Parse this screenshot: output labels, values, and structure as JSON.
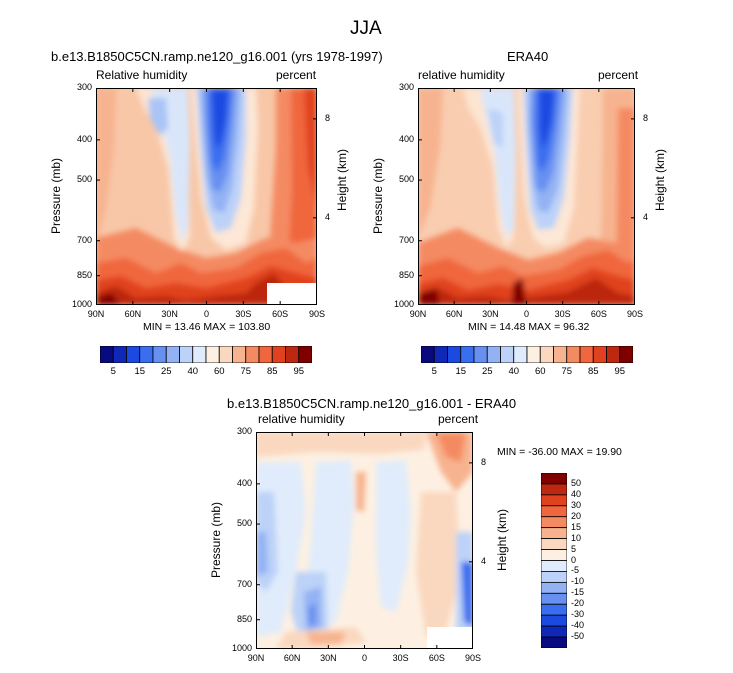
{
  "chart_data": [
    {
      "type": "heatmap",
      "title": "b.e13.B1850C5CN.ramp.ne120_g16.001 (yrs 1978-1997)",
      "left_label": "Relative humidity",
      "right_label": "percent",
      "ylabel": "Pressure (mb)",
      "ylabel_right": "Height (km)",
      "x_ticks": [
        "90N",
        "60N",
        "30N",
        "0",
        "30S",
        "60S",
        "90S"
      ],
      "y_ticks": [
        "300",
        "400",
        "500",
        "700",
        "850",
        "1000"
      ],
      "height_ticks": [
        "8",
        "4"
      ],
      "min": 13.46,
      "max": 103.8,
      "stats_text": "MIN = 13.46   MAX = 103.80"
    },
    {
      "type": "heatmap",
      "title": "ERA40",
      "left_label": "relative humidity",
      "right_label": "percent",
      "ylabel": "Pressure (mb)",
      "ylabel_right": "Height (km)",
      "x_ticks": [
        "90N",
        "60N",
        "30N",
        "0",
        "30S",
        "60S",
        "90S"
      ],
      "y_ticks": [
        "300",
        "400",
        "500",
        "700",
        "850",
        "1000"
      ],
      "height_ticks": [
        "8",
        "4"
      ],
      "min": 14.48,
      "max": 96.32,
      "stats_text": "MIN = 14.48   MAX = 96.32"
    },
    {
      "type": "heatmap",
      "title": "b.e13.B1850C5CN.ramp.ne120_g16.001 - ERA40",
      "left_label": "relative humidity",
      "right_label": "percent",
      "ylabel": "Pressure (mb)",
      "ylabel_right": "Height (km)",
      "x_ticks": [
        "90N",
        "60N",
        "30N",
        "0",
        "30S",
        "60S",
        "90S"
      ],
      "y_ticks": [
        "300",
        "400",
        "500",
        "700",
        "850",
        "1000"
      ],
      "height_ticks": [
        "8",
        "4"
      ],
      "min": -36.0,
      "max": 19.9,
      "stats_text": "MIN = -36.00   MAX =  19.90"
    }
  ],
  "figure": {
    "title": "JJA"
  },
  "colorbar_abs": {
    "labels": [
      "5",
      "15",
      "25",
      "40",
      "60",
      "75",
      "85",
      "95"
    ],
    "colors": [
      "#0a0a80",
      "#1028b8",
      "#1a4ae0",
      "#3a6ef0",
      "#6790f0",
      "#93b2f4",
      "#bcd2f8",
      "#e0ecfb",
      "#fdf0e2",
      "#fad8bf",
      "#f7b38f",
      "#f48a62",
      "#f0663e",
      "#e0421f",
      "#bc2810",
      "#800000"
    ]
  },
  "colorbar_diff": {
    "labels": [
      "50",
      "40",
      "30",
      "20",
      "15",
      "10",
      "5",
      "0",
      "-5",
      "-10",
      "-15",
      "-20",
      "-30",
      "-40",
      "-50"
    ],
    "colors": [
      "#800000",
      "#bc2810",
      "#e0421f",
      "#f0663e",
      "#f48a62",
      "#f7b38f",
      "#fad8bf",
      "#fdf0e2",
      "#e0ecfb",
      "#bcd2f8",
      "#93b2f4",
      "#6790f0",
      "#3a6ef0",
      "#1a4ae0",
      "#1028b8",
      "#0a0a80"
    ]
  }
}
